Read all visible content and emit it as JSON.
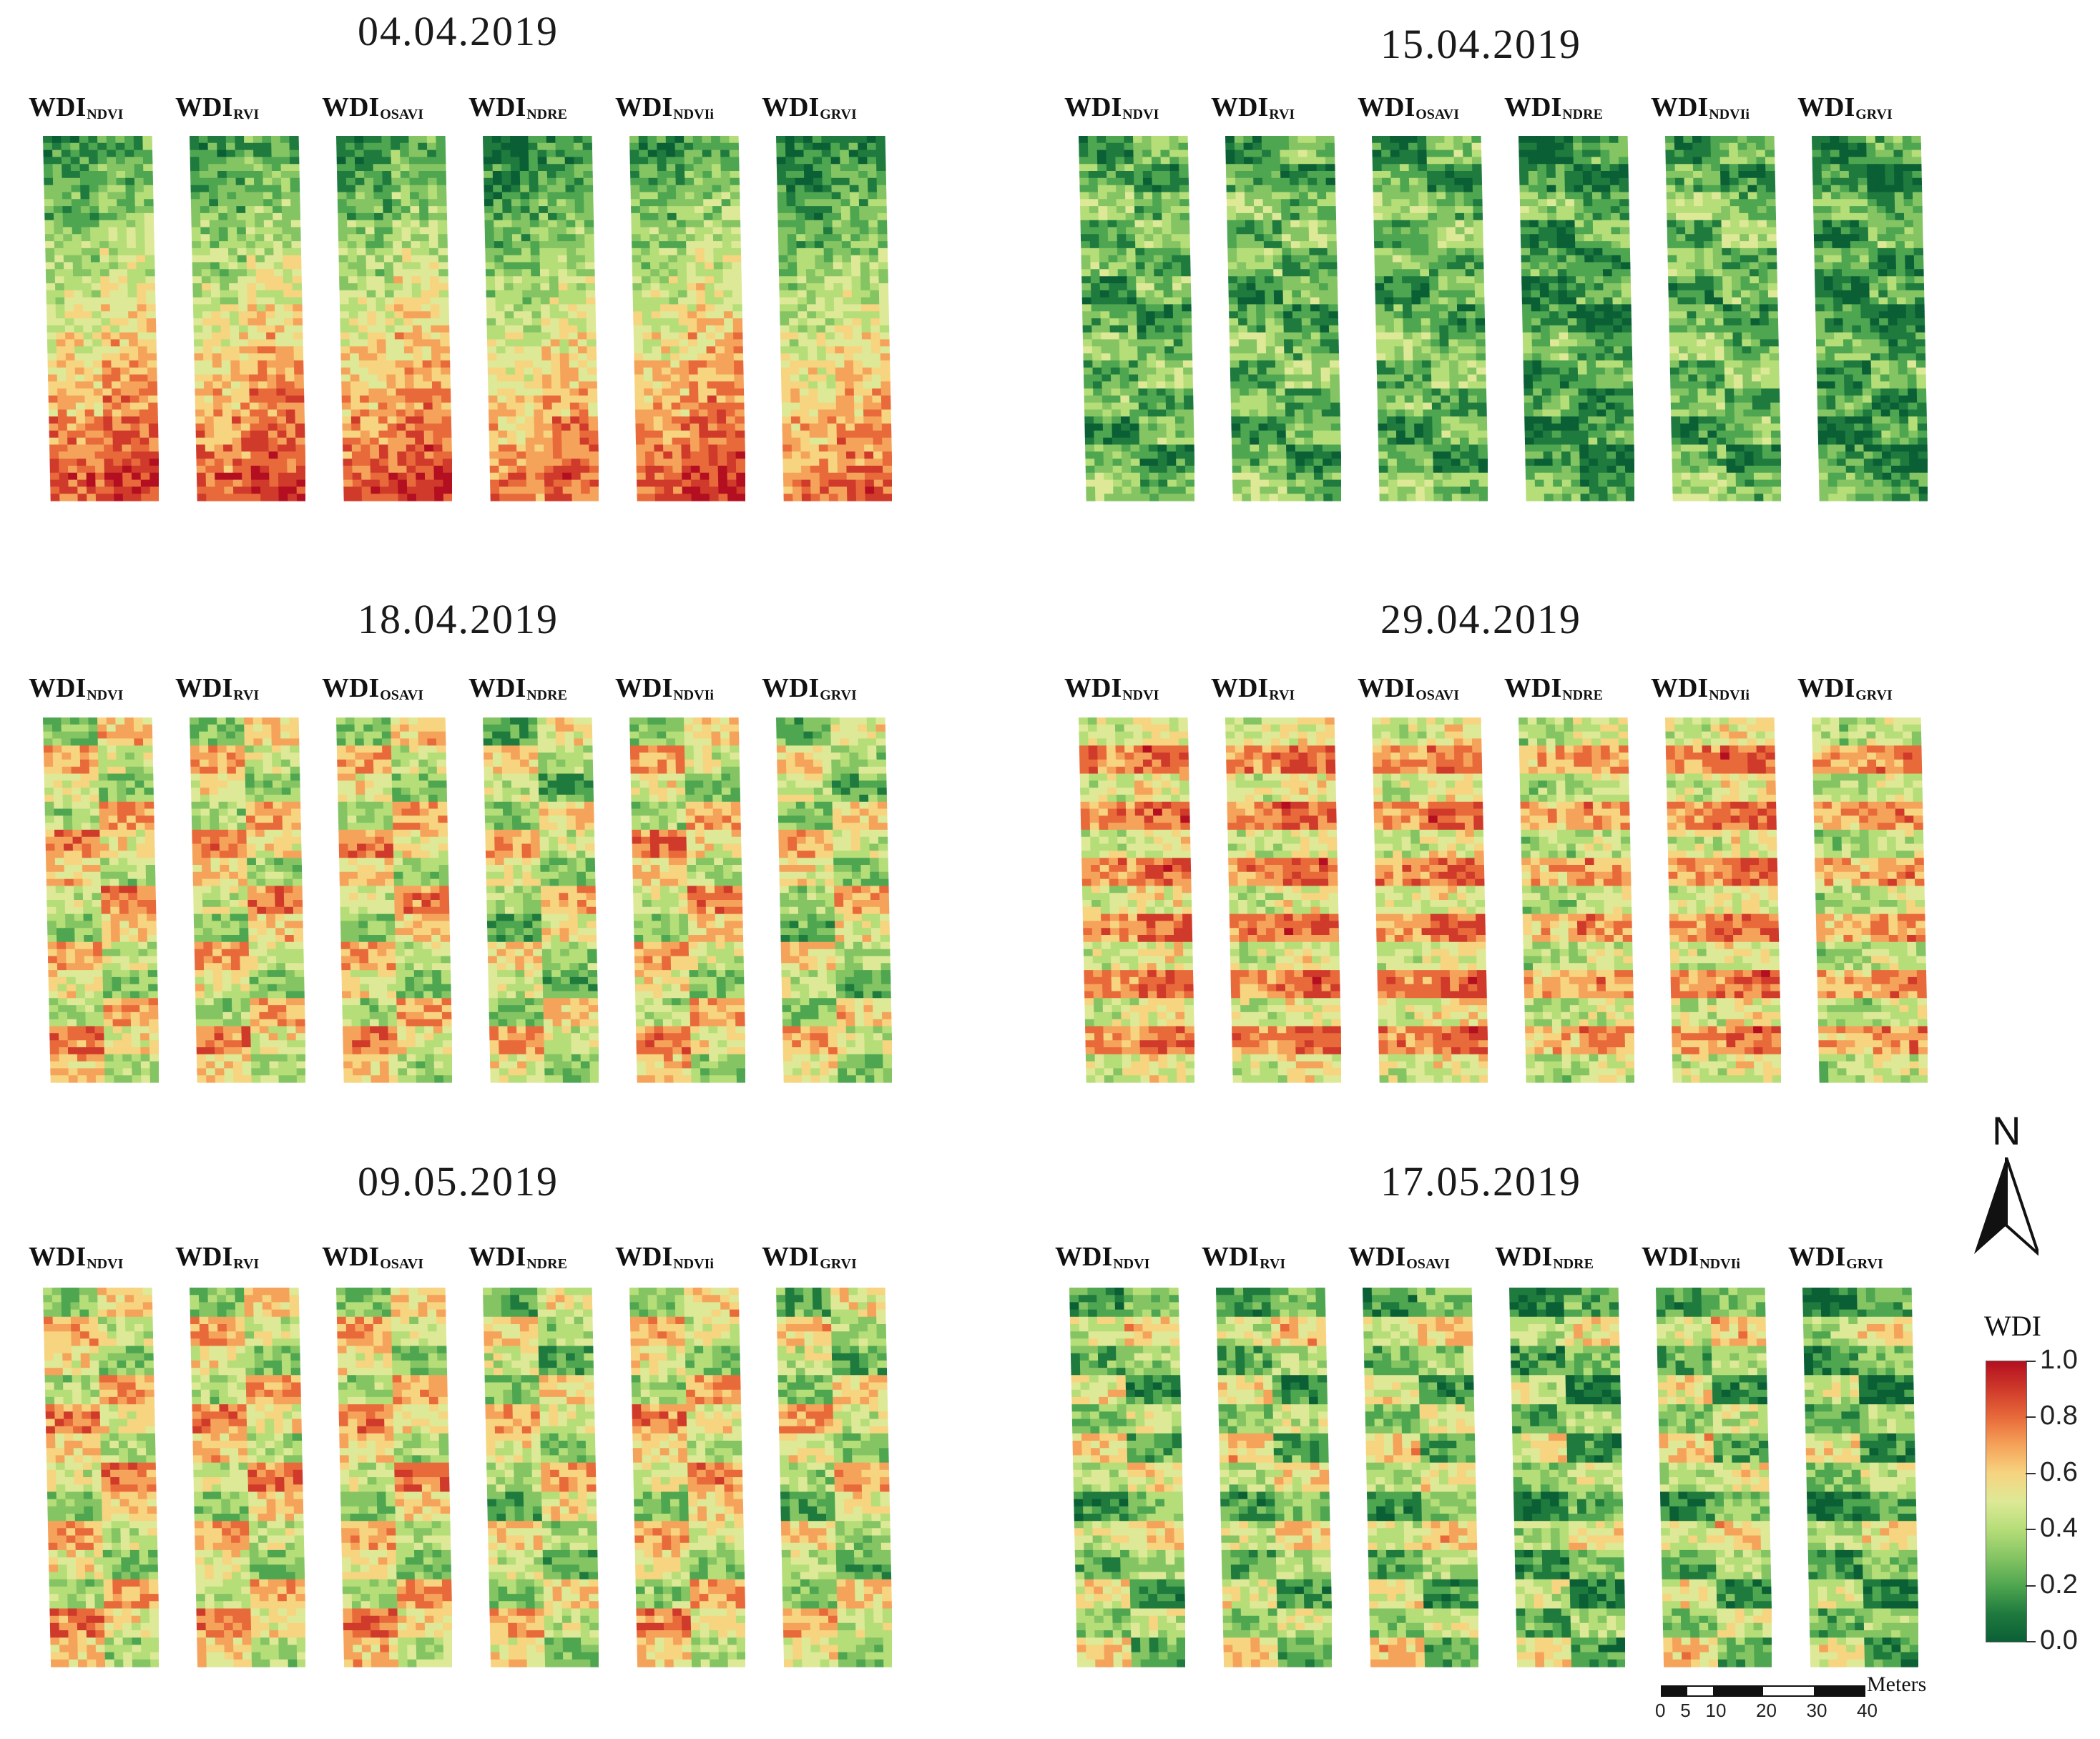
{
  "figure": {
    "legend": {
      "title": "WDI",
      "ticks": [
        "1.0",
        "0.8",
        "0.6",
        "0.4",
        "0.2",
        "0.0"
      ],
      "colors": [
        "#b30f20",
        "#cf3a2a",
        "#e86a3a",
        "#f5a35a",
        "#f6d480",
        "#dde996",
        "#b5dd78",
        "#85c463",
        "#4fa650",
        "#1f7a3e",
        "#0b5f35"
      ]
    },
    "north_arrow": {
      "letter": "N"
    },
    "scale_bar": {
      "unit": "Meters",
      "ticks": [
        "0",
        "5",
        "10",
        "20",
        "30",
        "40"
      ]
    },
    "panels": [
      {
        "date": "04.04.2019",
        "regime": "mixed_red",
        "indices": [
          {
            "base": "WDI",
            "sub": "NDVI"
          },
          {
            "base": "WDI",
            "sub": "RVI"
          },
          {
            "base": "WDI",
            "sub": "OSAVI"
          },
          {
            "base": "WDI",
            "sub": "NDRE"
          },
          {
            "base": "WDI",
            "sub": "NDVIi"
          },
          {
            "base": "WDI",
            "sub": "GRVI"
          }
        ]
      },
      {
        "date": "15.04.2019",
        "regime": "green",
        "indices": [
          {
            "base": "WDI",
            "sub": "NDVI"
          },
          {
            "base": "WDI",
            "sub": "RVI"
          },
          {
            "base": "WDI",
            "sub": "OSAVI"
          },
          {
            "base": "WDI",
            "sub": "NDRE"
          },
          {
            "base": "WDI",
            "sub": "NDVIi"
          },
          {
            "base": "WDI",
            "sub": "GRVI"
          }
        ]
      },
      {
        "date": "18.04.2019",
        "regime": "mixed",
        "indices": [
          {
            "base": "WDI",
            "sub": "NDVI"
          },
          {
            "base": "WDI",
            "sub": "RVI"
          },
          {
            "base": "WDI",
            "sub": "OSAVI"
          },
          {
            "base": "WDI",
            "sub": "NDRE"
          },
          {
            "base": "WDI",
            "sub": "NDVIi"
          },
          {
            "base": "WDI",
            "sub": "GRVI"
          }
        ]
      },
      {
        "date": "29.04.2019",
        "regime": "red",
        "indices": [
          {
            "base": "WDI",
            "sub": "NDVI"
          },
          {
            "base": "WDI",
            "sub": "RVI"
          },
          {
            "base": "WDI",
            "sub": "OSAVI"
          },
          {
            "base": "WDI",
            "sub": "NDRE"
          },
          {
            "base": "WDI",
            "sub": "NDVIi"
          },
          {
            "base": "WDI",
            "sub": "GRVI"
          }
        ]
      },
      {
        "date": "09.05.2019",
        "regime": "mixed",
        "indices": [
          {
            "base": "WDI",
            "sub": "NDVI"
          },
          {
            "base": "WDI",
            "sub": "RVI"
          },
          {
            "base": "WDI",
            "sub": "OSAVI"
          },
          {
            "base": "WDI",
            "sub": "NDRE"
          },
          {
            "base": "WDI",
            "sub": "NDVIi"
          },
          {
            "base": "WDI",
            "sub": "GRVI"
          }
        ]
      },
      {
        "date": "17.05.2019",
        "regime": "mixed_green",
        "indices": [
          {
            "base": "WDI",
            "sub": "NDVI"
          },
          {
            "base": "WDI",
            "sub": "RVI"
          },
          {
            "base": "WDI",
            "sub": "OSAVI"
          },
          {
            "base": "WDI",
            "sub": "NDRE"
          },
          {
            "base": "WDI",
            "sub": "NDVIi"
          },
          {
            "base": "WDI",
            "sub": "GRVI"
          }
        ]
      }
    ]
  }
}
